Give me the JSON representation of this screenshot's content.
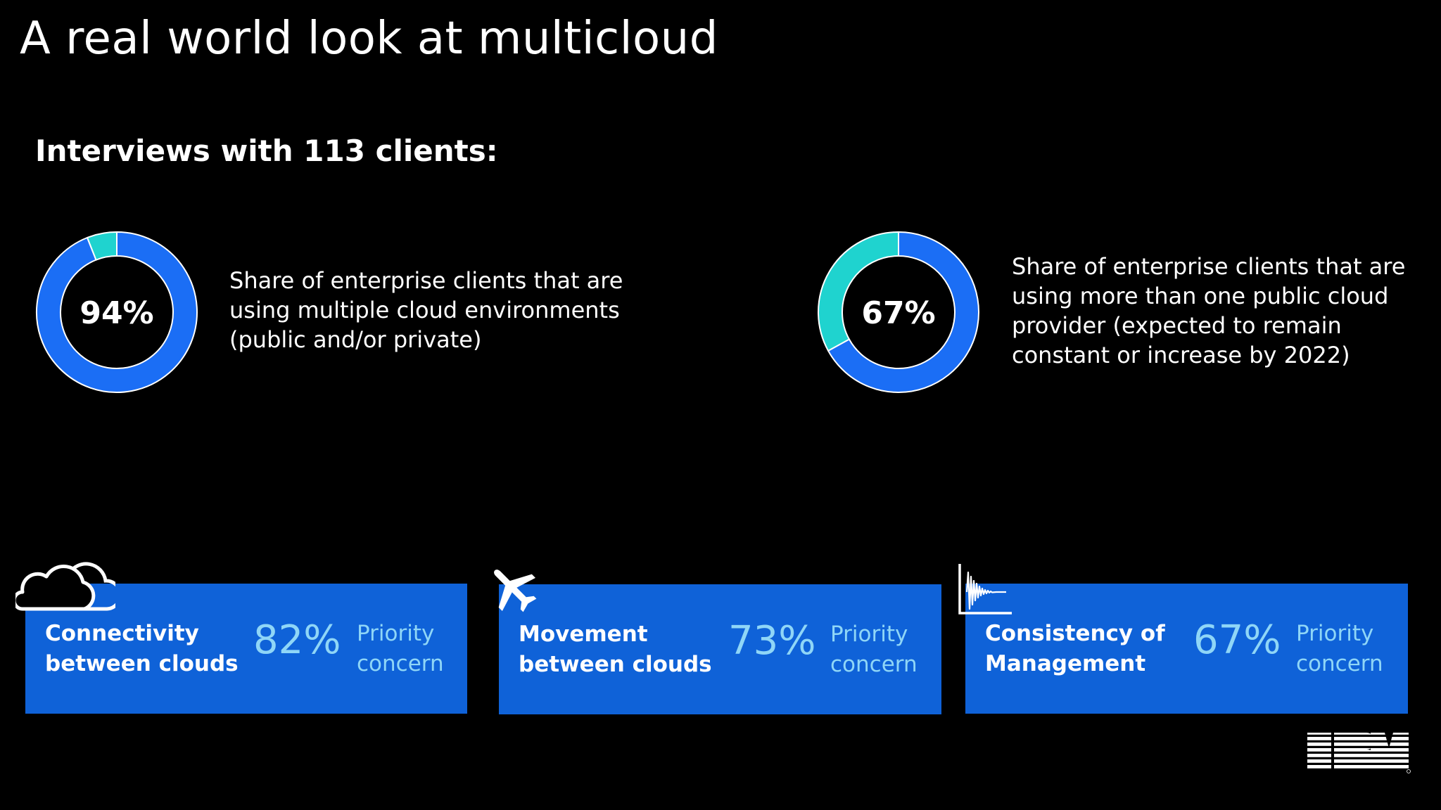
{
  "header": {
    "title": "A real world look at multicloud",
    "subtitle": "Interviews with 113 clients:"
  },
  "colors": {
    "background": "#000000",
    "ring_primary": "#1b6ef5",
    "ring_secondary": "#1fd3cf",
    "card_bg": "#0f62d8",
    "card_accent": "#8fd6f7"
  },
  "chart_data": [
    {
      "type": "pie",
      "label": "94%",
      "value": 94,
      "segments": [
        {
          "value": 94,
          "color": "#1b6ef5"
        },
        {
          "value": 6,
          "color": "#1fd3cf"
        }
      ],
      "description_lines": [
        "Share of enterprise clients that are",
        "using multiple cloud environments",
        "(public and/or private)"
      ]
    },
    {
      "type": "pie",
      "label": "67%",
      "value": 67,
      "segments": [
        {
          "value": 67,
          "color": "#1b6ef5"
        },
        {
          "value": 33,
          "color": "#1fd3cf"
        }
      ],
      "description_lines": [
        "Share of enterprise clients that are",
        "using more than one public cloud",
        "provider (expected to remain",
        "constant or increase by 2022)"
      ]
    }
  ],
  "cards": [
    {
      "icon": "cloud-icon",
      "label_lines": [
        "Connectivity",
        "between clouds"
      ],
      "value": "82%",
      "note_lines": [
        "Priority",
        "concern"
      ]
    },
    {
      "icon": "airplane-icon",
      "label_lines": [
        "Movement",
        "between clouds"
      ],
      "value": "73%",
      "note_lines": [
        "Priority",
        "concern"
      ]
    },
    {
      "icon": "waveform-icon",
      "label_lines": [
        "Consistency of",
        "Management"
      ],
      "value": "67%",
      "note_lines": [
        "Priority",
        "concern"
      ]
    }
  ],
  "logo": {
    "icon": "ibm-logo",
    "text": "IBM"
  }
}
